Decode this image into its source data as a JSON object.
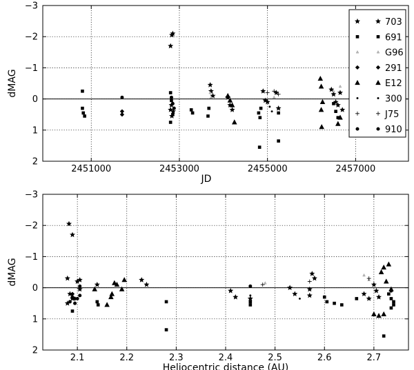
{
  "chart_data": [
    {
      "type": "scatter",
      "xlabel": "JD",
      "ylabel": "dMAG",
      "xlim": [
        2449900,
        2458200
      ],
      "ylim": [
        2,
        -3
      ],
      "xticks": [
        2451000,
        2453000,
        2455000,
        2457000
      ],
      "xtick_labels": [
        "2451000",
        "2453000",
        "2455000",
        "2457000"
      ],
      "yticks": [
        -3,
        -2,
        -1,
        0,
        1,
        2
      ],
      "ytick_labels": [
        "−3",
        "−2",
        "−1",
        "0",
        "1",
        "2"
      ],
      "grid": true,
      "reference_line_y": 0,
      "legend_placement": "top-right",
      "series": [
        {
          "name": "703",
          "marker": "star",
          "points": [
            [
              2452800,
              -1.7
            ],
            [
              2452830,
              -2.05
            ],
            [
              2452850,
              -2.1
            ],
            [
              2452800,
              0.35
            ],
            [
              2452830,
              0.55
            ],
            [
              2452860,
              0.4
            ],
            [
              2452820,
              0.2
            ],
            [
              2453700,
              -0.45
            ],
            [
              2453720,
              -0.25
            ],
            [
              2453760,
              -0.1
            ],
            [
              2454100,
              -0.05
            ],
            [
              2454150,
              0.2
            ],
            [
              2454200,
              0.35
            ],
            [
              2454900,
              -0.25
            ],
            [
              2454950,
              0.05
            ],
            [
              2455000,
              0.1
            ],
            [
              2455200,
              -0.2
            ],
            [
              2455250,
              0.3
            ],
            [
              2456450,
              -0.3
            ],
            [
              2456500,
              -0.15
            ],
            [
              2456550,
              0.1
            ],
            [
              2456600,
              0.2
            ],
            [
              2456650,
              -0.2
            ],
            [
              2456700,
              0.35
            ]
          ]
        },
        {
          "name": "691",
          "marker": "square",
          "points": [
            [
              2450800,
              -0.25
            ],
            [
              2450800,
              0.3
            ],
            [
              2450850,
              0.55
            ],
            [
              2450820,
              0.45
            ],
            [
              2452800,
              -0.2
            ],
            [
              2452820,
              0.05
            ],
            [
              2452850,
              0.5
            ],
            [
              2452800,
              0.75
            ],
            [
              2453270,
              0.35
            ],
            [
              2453300,
              0.45
            ],
            [
              2453650,
              0.55
            ],
            [
              2453670,
              0.3
            ],
            [
              2454800,
              0.45
            ],
            [
              2454830,
              0.6
            ],
            [
              2454850,
              0.3
            ],
            [
              2455250,
              0.45
            ],
            [
              2454820,
              1.55
            ],
            [
              2455250,
              1.35
            ],
            [
              2456500,
              0.15
            ],
            [
              2456550,
              0.4
            ],
            [
              2456600,
              0.6
            ]
          ]
        },
        {
          "name": "G96",
          "marker": "tri-small",
          "points": [
            [
              2453700,
              -0.2
            ],
            [
              2453720,
              -0.05
            ],
            [
              2455150,
              -0.05
            ],
            [
              2456500,
              -0.25
            ],
            [
              2456650,
              -0.4
            ]
          ]
        },
        {
          "name": "291",
          "marker": "diamond",
          "points": [
            [
              2451700,
              0.4
            ],
            [
              2451700,
              0.5
            ]
          ]
        },
        {
          "name": "E12",
          "marker": "triangle",
          "points": [
            [
              2454100,
              -0.1
            ],
            [
              2454150,
              0.05
            ],
            [
              2454200,
              0.2
            ],
            [
              2454250,
              0.75
            ],
            [
              2456200,
              -0.65
            ],
            [
              2456220,
              -0.4
            ],
            [
              2456250,
              0.1
            ],
            [
              2456220,
              0.35
            ],
            [
              2456230,
              0.9
            ],
            [
              2456600,
              0.8
            ],
            [
              2456650,
              0.6
            ]
          ]
        },
        {
          "name": "300",
          "marker": "circle-small",
          "points": [
            [
              2455050,
              0.25
            ],
            [
              2455100,
              0.4
            ]
          ]
        },
        {
          "name": "J75",
          "marker": "plus",
          "points": [
            [
              2455000,
              -0.2
            ],
            [
              2455150,
              -0.25
            ],
            [
              2455250,
              -0.15
            ]
          ]
        },
        {
          "name": "910",
          "marker": "circle",
          "points": [
            [
              2451700,
              -0.05
            ],
            [
              2452820,
              -0.05
            ],
            [
              2452850,
              0.15
            ],
            [
              2452880,
              0.3
            ]
          ]
        }
      ]
    },
    {
      "type": "scatter",
      "xlabel": "Heliocentric distance (AU)",
      "ylabel": "dMAG",
      "xlim": [
        2.03,
        2.77
      ],
      "ylim": [
        2,
        -3
      ],
      "xticks": [
        2.1,
        2.2,
        2.3,
        2.4,
        2.5,
        2.6,
        2.7
      ],
      "xtick_labels": [
        "2.1",
        "2.2",
        "2.3",
        "2.4",
        "2.5",
        "2.6",
        "2.7"
      ],
      "yticks": [
        -3,
        -2,
        -1,
        0,
        1,
        2
      ],
      "ytick_labels": [
        "−3",
        "−2",
        "−1",
        "0",
        "1",
        "2"
      ],
      "grid": true,
      "reference_line_y": 0,
      "series": [
        {
          "name": "703",
          "marker": "star",
          "points": [
            [
              2.083,
              -2.05
            ],
            [
              2.09,
              -1.7
            ],
            [
              2.08,
              -0.3
            ],
            [
              2.085,
              0.2
            ],
            [
              2.08,
              0.5
            ],
            [
              2.09,
              0.35
            ],
            [
              2.1,
              -0.2
            ],
            [
              2.105,
              0.05
            ],
            [
              2.105,
              -0.25
            ],
            [
              2.14,
              -0.1
            ],
            [
              2.23,
              -0.25
            ],
            [
              2.24,
              -0.1
            ],
            [
              2.41,
              0.1
            ],
            [
              2.42,
              0.3
            ],
            [
              2.45,
              0.35
            ],
            [
              2.53,
              0.0
            ],
            [
              2.54,
              0.2
            ],
            [
              2.57,
              0.05
            ],
            [
              2.575,
              -0.45
            ],
            [
              2.58,
              -0.3
            ],
            [
              2.57,
              0.25
            ],
            [
              2.68,
              0.2
            ],
            [
              2.69,
              0.35
            ],
            [
              2.7,
              -0.1
            ],
            [
              2.705,
              0.1
            ],
            [
              2.71,
              0.3
            ]
          ]
        },
        {
          "name": "691",
          "marker": "square",
          "points": [
            [
              2.09,
              0.75
            ],
            [
              2.14,
              0.45
            ],
            [
              2.142,
              0.55
            ],
            [
              2.28,
              0.45
            ],
            [
              2.28,
              1.35
            ],
            [
              2.45,
              0.45
            ],
            [
              2.45,
              0.55
            ],
            [
              2.6,
              0.3
            ],
            [
              2.605,
              0.45
            ],
            [
              2.62,
              0.5
            ],
            [
              2.635,
              0.55
            ],
            [
              2.665,
              0.35
            ],
            [
              2.72,
              1.55
            ],
            [
              2.73,
              0.2
            ],
            [
              2.735,
              0.35
            ],
            [
              2.74,
              0.45
            ],
            [
              2.74,
              0.55
            ],
            [
              2.735,
              0.65
            ]
          ]
        },
        {
          "name": "G96",
          "marker": "tri-small",
          "points": [
            [
              2.48,
              -0.15
            ],
            [
              2.68,
              -0.4
            ],
            [
              2.69,
              -0.25
            ]
          ]
        },
        {
          "name": "291",
          "marker": "diamond",
          "points": [
            [
              2.09,
              0.2
            ],
            [
              2.095,
              0.35
            ]
          ]
        },
        {
          "name": "E12",
          "marker": "triangle",
          "points": [
            [
              2.135,
              0.05
            ],
            [
              2.17,
              0.2
            ],
            [
              2.175,
              -0.15
            ],
            [
              2.18,
              -0.1
            ],
            [
              2.195,
              -0.25
            ],
            [
              2.16,
              0.55
            ],
            [
              2.168,
              0.3
            ],
            [
              2.19,
              0.05
            ],
            [
              2.7,
              0.85
            ],
            [
              2.71,
              0.9
            ],
            [
              2.72,
              0.85
            ],
            [
              2.715,
              -0.5
            ],
            [
              2.72,
              -0.65
            ],
            [
              2.725,
              -0.2
            ],
            [
              2.73,
              -0.75
            ],
            [
              2.735,
              0.05
            ]
          ]
        },
        {
          "name": "300",
          "marker": "circle-small",
          "points": [
            [
              2.45,
              0.25
            ],
            [
              2.55,
              0.35
            ]
          ]
        },
        {
          "name": "J75",
          "marker": "plus",
          "points": [
            [
              2.475,
              -0.1
            ],
            [
              2.57,
              -0.2
            ],
            [
              2.69,
              -0.3
            ]
          ]
        },
        {
          "name": "910",
          "marker": "circle",
          "points": [
            [
              2.085,
              0.45
            ],
            [
              2.09,
              0.3
            ],
            [
              2.1,
              0.35
            ],
            [
              2.095,
              0.5
            ],
            [
              2.105,
              0.25
            ],
            [
              2.105,
              -0.05
            ],
            [
              2.45,
              -0.05
            ],
            [
              2.735,
              0.1
            ]
          ]
        }
      ]
    }
  ]
}
